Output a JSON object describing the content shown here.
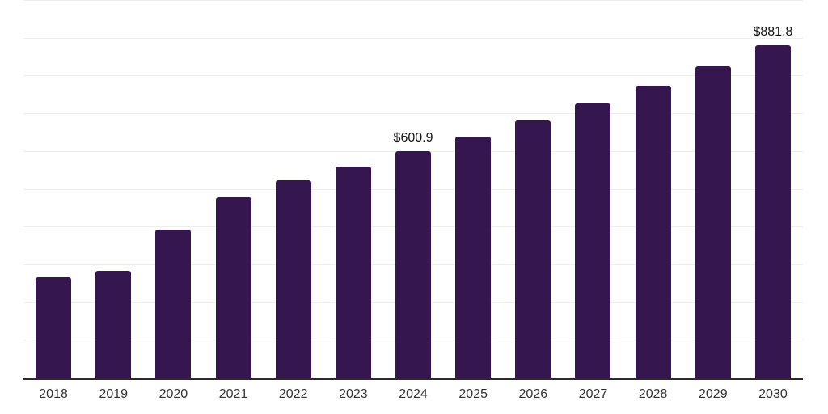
{
  "chart_data": {
    "type": "bar",
    "title": "",
    "xlabel": "",
    "ylabel": "",
    "categories": [
      "2018",
      "2019",
      "2020",
      "2021",
      "2022",
      "2023",
      "2024",
      "2025",
      "2026",
      "2027",
      "2028",
      "2029",
      "2030"
    ],
    "values": [
      267,
      285,
      395,
      480,
      524,
      561,
      600.9,
      641,
      683,
      728,
      776,
      827,
      881.8
    ],
    "data_labels": [
      "",
      "",
      "",
      "",
      "",
      "",
      "$600.9",
      "",
      "",
      "",
      "",
      "",
      "$881.8"
    ],
    "ylim": [
      0,
      1000
    ],
    "gridline_step": 100,
    "grid": "horizontal",
    "legend": "none",
    "colors": {
      "bar": "#35164f",
      "background": "#ffffff",
      "axis_line": "#2b2b2b",
      "gridline": "#eeeeee",
      "tick_label": "#333333",
      "value_label": "#111111"
    }
  }
}
